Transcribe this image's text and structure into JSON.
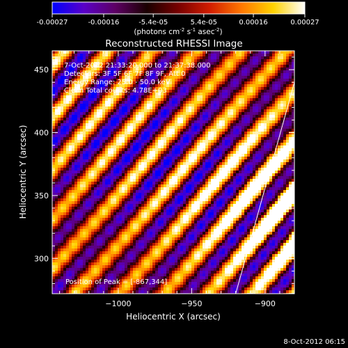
{
  "colorbar": {
    "ticks": [
      "-0.00027",
      "-0.00016",
      "-5.4e-05",
      "5.4e-05",
      "0.00016",
      "0.00027"
    ],
    "tick_values": [
      -0.00027,
      -0.00016,
      -5.4e-05,
      5.4e-05,
      0.00016,
      0.00027
    ],
    "unit_main": "(photons cm",
    "unit_exp1": "-2",
    "unit_mid": " s",
    "unit_exp2": "-1",
    "unit_end": " asec",
    "unit_exp3": "-2",
    "unit_close": ")",
    "colors": [
      "#0000ff",
      "#5a00c8",
      "#5d0064",
      "#1a0000",
      "#780000",
      "#d21e00",
      "#ff7800",
      "#ffd200",
      "#ffffff"
    ]
  },
  "chart_data": {
    "type": "heatmap",
    "title": "Reconstructed RHESSI Image",
    "xlabel": "Heliocentric X (arcsec)",
    "ylabel": "Heliocentric Y (arcsec)",
    "xlim": [
      -1045,
      -880
    ],
    "ylim": [
      272,
      465
    ],
    "xticks": [
      -1000,
      -950,
      -900
    ],
    "xtick_labels": [
      "−1000",
      "−950",
      "−900"
    ],
    "yticks": [
      300,
      350,
      400,
      450
    ],
    "ytick_labels": [
      "300",
      "350",
      "400",
      "450"
    ],
    "stripe_pattern": "diagonal bands of alternating positive and negative flux running from upper-left to lower-right",
    "peak": [
      -867,
      344
    ],
    "limb_line": [
      [
        -920,
        272
      ],
      [
        -880,
        440
      ]
    ],
    "annotations": [
      "7-Oct-2012 21:33:20.000 to 21:37:38.000",
      "Detectors: 3F 5F 6F 7F 8F 9F, Att 0",
      "Energy Range: 25.0 - 50.0 keV",
      "Clean    Total counts: 4.78E+03"
    ],
    "peak_label": "Position of Peak = [-867,344]"
  },
  "footer": {
    "timestamp": "8-Oct-2012 06:15"
  }
}
